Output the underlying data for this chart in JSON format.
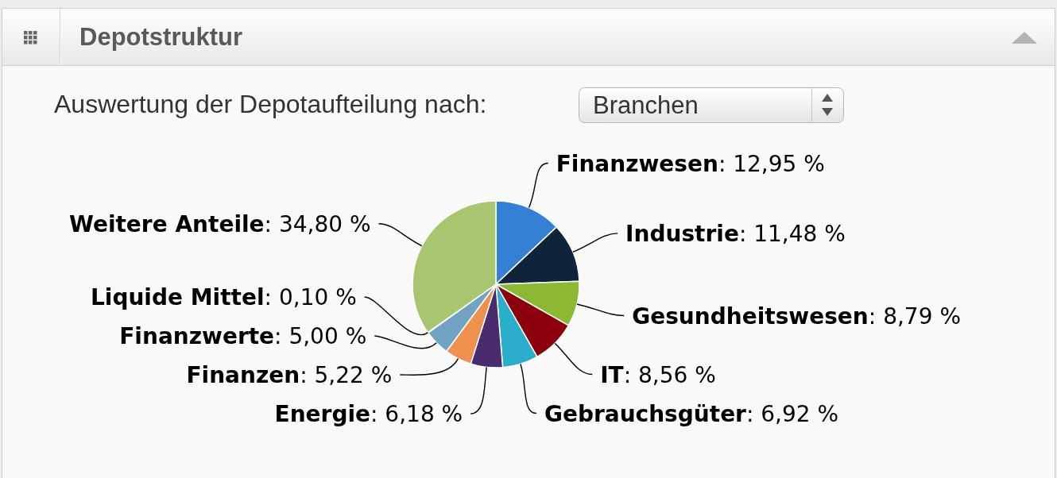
{
  "chart_data": {
    "type": "pie",
    "title": "Depotstruktur",
    "annotations": [
      "Auswertung der Depotaufteilung nach:",
      "Branchen"
    ],
    "categories": [
      "Finanzwesen",
      "Industrie",
      "Gesundheitswesen",
      "IT",
      "Gebrauchsgüter",
      "Energie",
      "Finanzen",
      "Finanzwerte",
      "Liquide Mittel",
      "Weitere Anteile"
    ],
    "values": [
      12.95,
      11.48,
      8.79,
      8.56,
      6.92,
      6.18,
      5.22,
      5.0,
      0.1,
      34.8
    ],
    "colors": [
      "#3580d4",
      "#0f233a",
      "#8cb833",
      "#8c000e",
      "#2aaecc",
      "#4a2b6d",
      "#f0904e",
      "#72a2c2",
      "#c8c8c8",
      "#a8c66f"
    ],
    "value_labels": [
      ": 12,95 %",
      ": 11,48 %",
      ": 8,79 %",
      ": 8,56 %",
      ": 6,92 %",
      ": 6,18 %",
      ": 5,22 %",
      ": 5,00 %",
      ": 0,10 %",
      ": 34,80 %"
    ]
  }
}
